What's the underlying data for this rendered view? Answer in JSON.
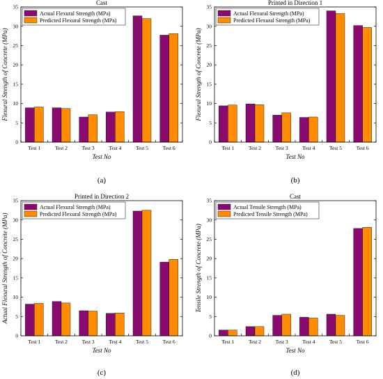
{
  "colors": {
    "actual": "#8B0A6F",
    "predicted": "#FF8C00"
  },
  "chart_data": [
    {
      "type": "bar",
      "panel_label": "(a)",
      "title": "Cast",
      "xlabel": "Test No",
      "ylabel": "Flexural Strength of Concrete (MPa)",
      "categories": [
        "Test 1",
        "Test 2",
        "Test 3",
        "Test 4",
        "Test 5",
        "Test 6"
      ],
      "ylim": [
        0,
        35
      ],
      "yticks": [
        0,
        5,
        10,
        15,
        20,
        25,
        30,
        35
      ],
      "legend_position": "top-left",
      "series": [
        {
          "name": "Actual Flexural Strength (MPa)",
          "values": [
            8.9,
            8.9,
            6.5,
            7.8,
            32.7,
            27.7
          ]
        },
        {
          "name": "Predicted Flexural Strength (MPa)",
          "values": [
            9.1,
            8.7,
            7.1,
            7.9,
            32.0,
            28.1
          ]
        }
      ]
    },
    {
      "type": "bar",
      "panel_label": "(b)",
      "title": "Printed in Direction 1",
      "xlabel": "Test No",
      "ylabel": "Flexural Strength of Concrete (MPa)",
      "categories": [
        "Test 1",
        "Test 2",
        "Test 3",
        "Test 4",
        "Test 5",
        "Test 6"
      ],
      "ylim": [
        0,
        35
      ],
      "yticks": [
        0,
        5,
        10,
        15,
        20,
        25,
        30,
        35
      ],
      "legend_position": "top-left",
      "series": [
        {
          "name": "Actual Flexural Strength (MPa)",
          "values": [
            9.4,
            9.9,
            7.0,
            6.4,
            34.0,
            30.2
          ]
        },
        {
          "name": "Predicted Flexural Strength (MPa)",
          "values": [
            9.6,
            9.7,
            7.6,
            6.5,
            33.3,
            29.7
          ]
        }
      ]
    },
    {
      "type": "bar",
      "panel_label": "(c)",
      "title": "Printed in Direction 2",
      "xlabel": "Test No",
      "ylabel": "Actual Flexural Strength of Concrete (MPa)",
      "categories": [
        "Test 1",
        "Test 2",
        "Test 3",
        "Test 4",
        "Test 5",
        "Test 6"
      ],
      "ylim": [
        0,
        35
      ],
      "yticks": [
        0,
        5,
        10,
        15,
        20,
        25,
        30,
        35
      ],
      "legend_position": "top-left",
      "series": [
        {
          "name": "Actual Flexural Strength (MPa)",
          "values": [
            8.2,
            8.9,
            6.5,
            5.8,
            32.3,
            19.1
          ]
        },
        {
          "name": "Predicted Flexural Strength (MPa)",
          "values": [
            8.4,
            8.5,
            6.4,
            5.9,
            32.5,
            19.8
          ]
        }
      ]
    },
    {
      "type": "bar",
      "panel_label": "(d)",
      "title": "Cast",
      "xlabel": "Test No",
      "ylabel": "Tensile Strength of Concrete (MPa)",
      "categories": [
        "Test 1",
        "Test 2",
        "Test 3",
        "Test 4",
        "Test 5",
        "Test 6"
      ],
      "ylim": [
        0,
        35
      ],
      "yticks": [
        0,
        5,
        10,
        15,
        20,
        25,
        30,
        35
      ],
      "legend_position": "top-left",
      "series": [
        {
          "name": "Actual Tensile Strength (MPa)",
          "values": [
            1.5,
            2.4,
            5.3,
            4.8,
            5.6,
            27.8
          ]
        },
        {
          "name": "Predicted Tensile Strength (MPa)",
          "values": [
            1.5,
            2.4,
            5.6,
            4.6,
            5.3,
            28.1
          ]
        }
      ]
    }
  ]
}
